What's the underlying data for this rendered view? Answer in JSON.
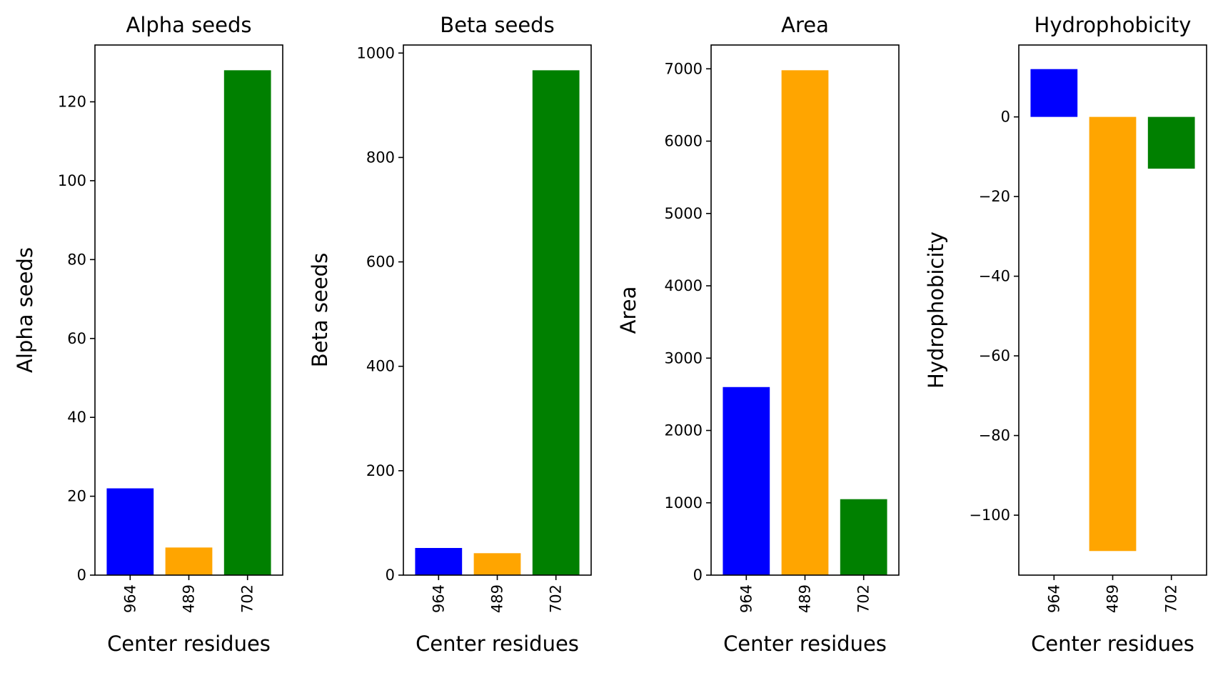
{
  "chart_data": [
    {
      "type": "bar",
      "title": "Alpha seeds",
      "xlabel": "Center residues",
      "ylabel": "Alpha seeds",
      "categories": [
        "964",
        "489",
        "702"
      ],
      "values": [
        22,
        7,
        128
      ],
      "colors": [
        "#0000ff",
        "#ffa500",
        "#008000"
      ],
      "ylim": [
        0,
        134.4
      ],
      "yticks": [
        0,
        20,
        40,
        60,
        80,
        100,
        120
      ],
      "ytick_labels": [
        "0",
        "20",
        "40",
        "60",
        "80",
        "100",
        "120"
      ]
    },
    {
      "type": "bar",
      "title": "Beta seeds",
      "xlabel": "Center residues",
      "ylabel": "Beta seeds",
      "categories": [
        "964",
        "489",
        "702"
      ],
      "values": [
        52,
        42,
        967
      ],
      "colors": [
        "#0000ff",
        "#ffa500",
        "#008000"
      ],
      "ylim": [
        0,
        1015.4
      ],
      "yticks": [
        0,
        200,
        400,
        600,
        800,
        1000
      ],
      "ytick_labels": [
        "0",
        "200",
        "400",
        "600",
        "800",
        "1000"
      ]
    },
    {
      "type": "bar",
      "title": "Area",
      "xlabel": "Center residues",
      "ylabel": "Area",
      "categories": [
        "964",
        "489",
        "702"
      ],
      "values": [
        2600,
        6980,
        1050
      ],
      "colors": [
        "#0000ff",
        "#ffa500",
        "#008000"
      ],
      "ylim": [
        0,
        7329
      ],
      "yticks": [
        0,
        1000,
        2000,
        3000,
        4000,
        5000,
        6000,
        7000
      ],
      "ytick_labels": [
        "0",
        "1000",
        "2000",
        "3000",
        "4000",
        "5000",
        "6000",
        "7000"
      ]
    },
    {
      "type": "bar",
      "title": "Hydrophobicity",
      "xlabel": "Center residues",
      "ylabel": "Hydrophobicity",
      "categories": [
        "964",
        "489",
        "702"
      ],
      "values": [
        12,
        -109,
        -13
      ],
      "colors": [
        "#0000ff",
        "#ffa500",
        "#008000"
      ],
      "ylim": [
        -115.05,
        18.05
      ],
      "yticks": [
        0,
        -20,
        -40,
        -60,
        -80,
        -100
      ],
      "ytick_labels": [
        "0",
        "−20",
        "−40",
        "−60",
        "−80",
        "−100"
      ]
    }
  ]
}
